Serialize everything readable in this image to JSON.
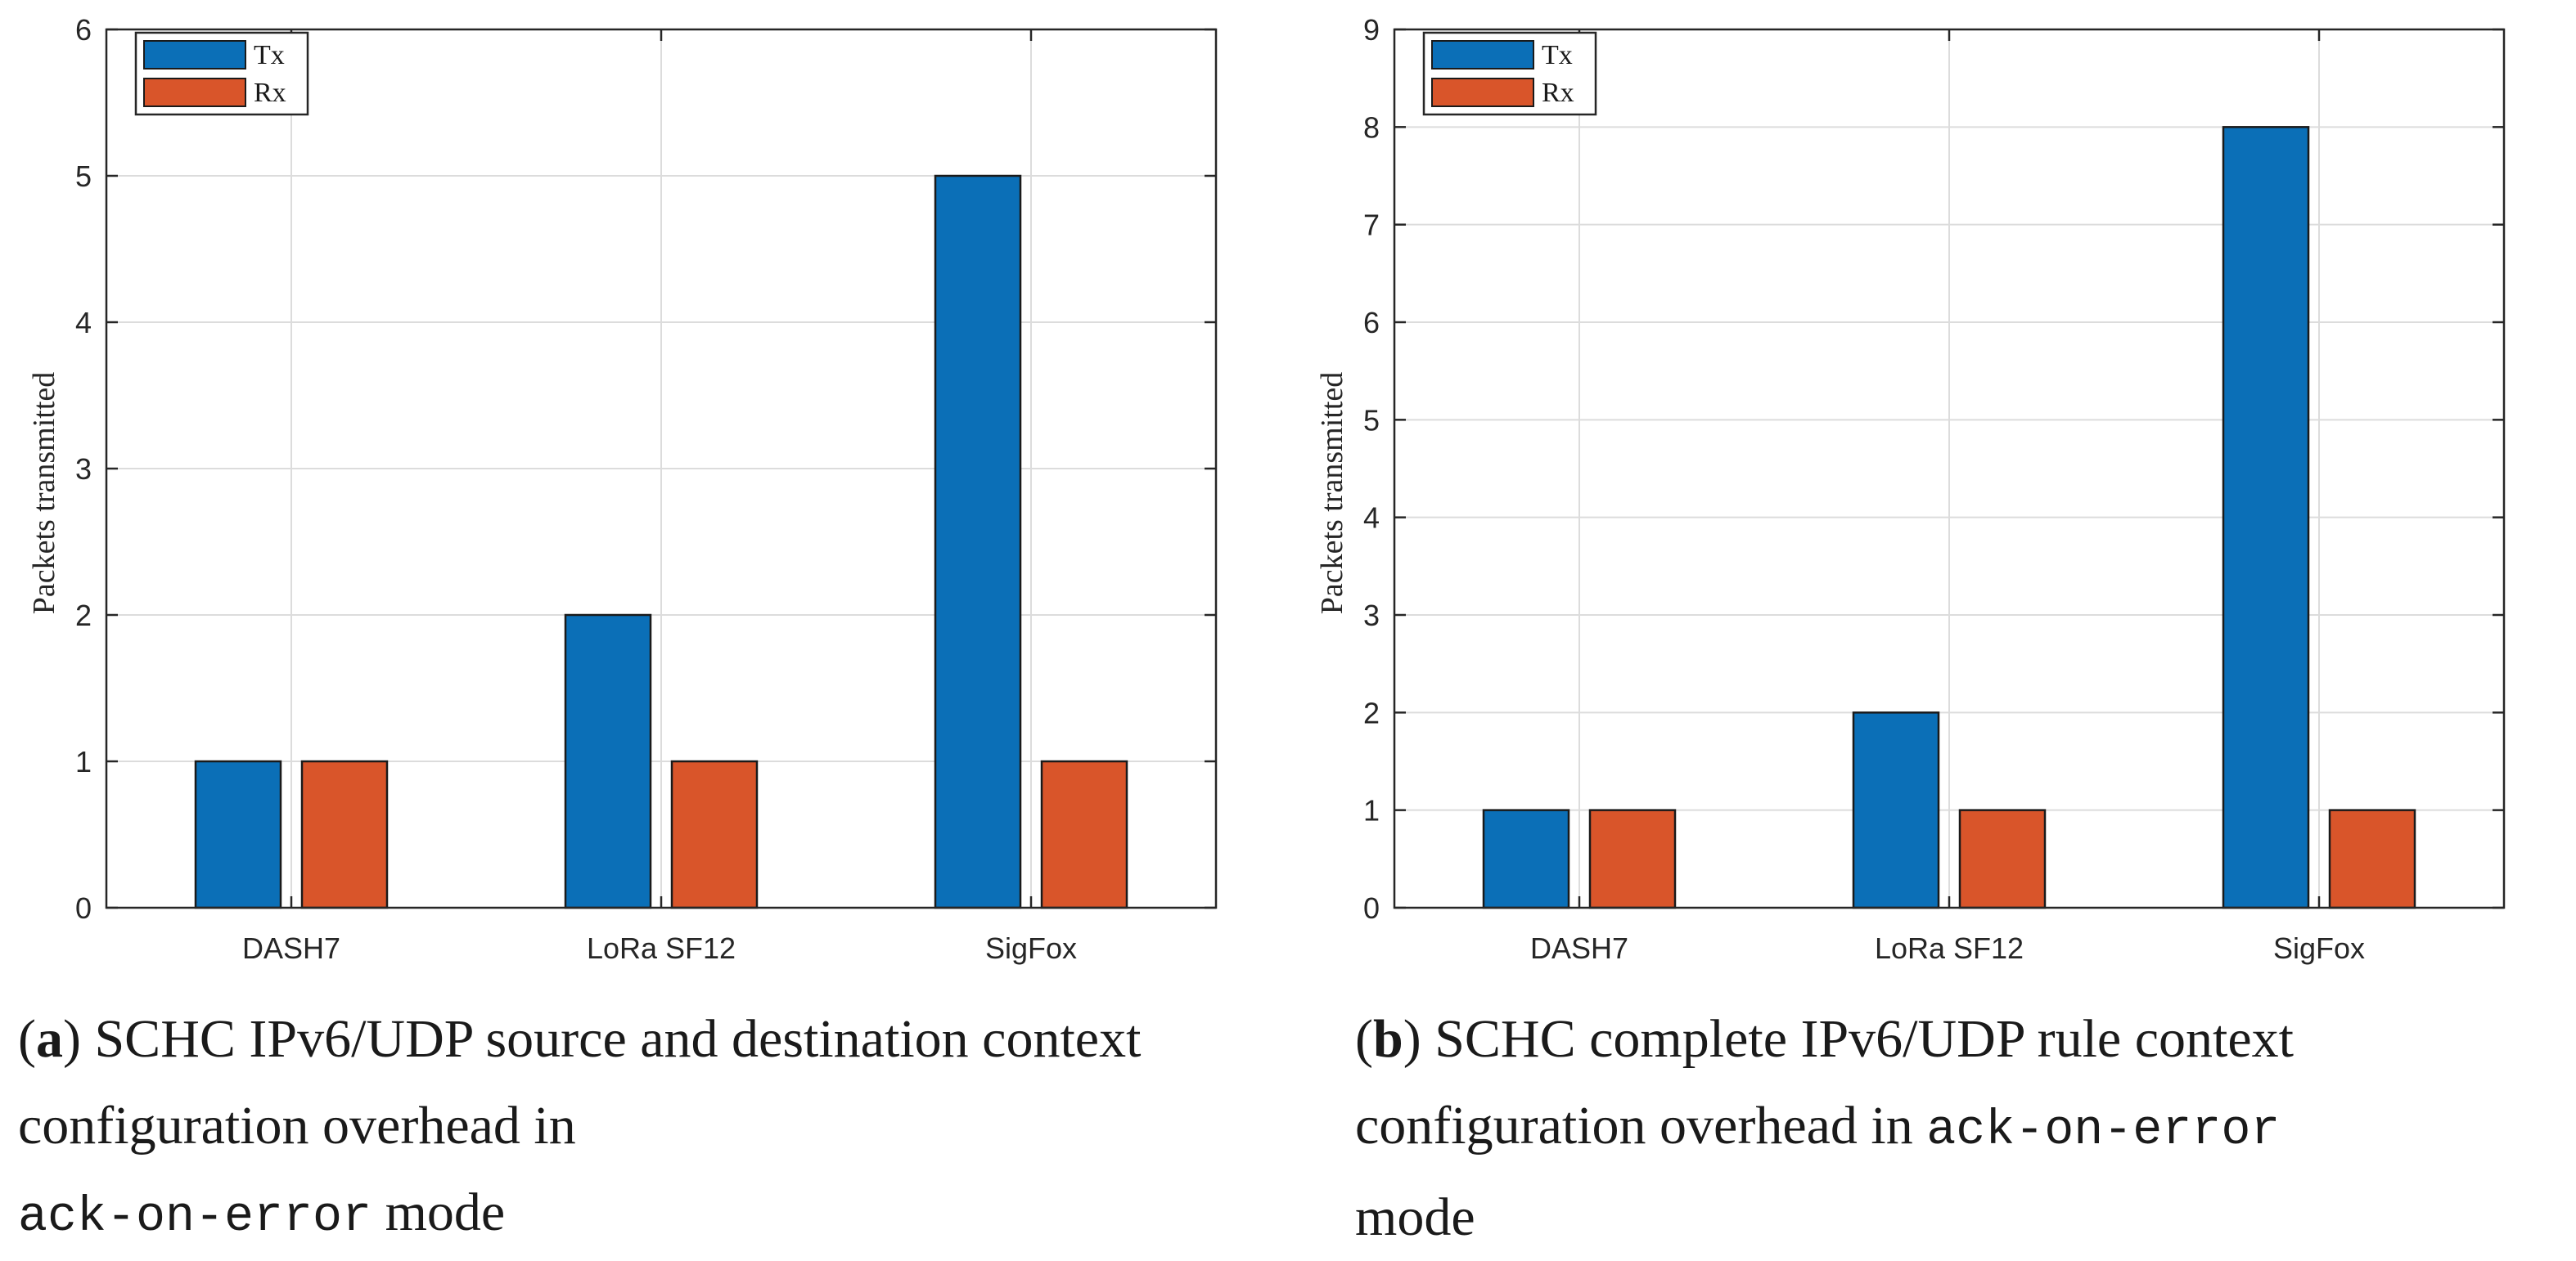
{
  "colors": {
    "tx": "#0b6fb7",
    "rx": "#d9552a",
    "grid": "#dcdcdc",
    "axis": "#262626"
  },
  "chart_data": [
    {
      "type": "bar",
      "panel": "a",
      "categories": [
        "DASH7",
        "LoRa SF12",
        "SigFox"
      ],
      "series": [
        {
          "name": "Tx",
          "values": [
            1,
            2,
            5
          ]
        },
        {
          "name": "Rx",
          "values": [
            1,
            1,
            1
          ]
        }
      ],
      "ylabel": "Packets transmitted",
      "xlabel": "",
      "ylim": [
        0,
        6
      ],
      "yticks": [
        0,
        1,
        2,
        3,
        4,
        5,
        6
      ],
      "grid": true,
      "legend": "top-left",
      "caption": {
        "label": "a",
        "text": "SCHC IPv6/UDP source and destination context configuration overhead in",
        "code": "ack-on-error",
        "tail": "mode"
      }
    },
    {
      "type": "bar",
      "panel": "b",
      "categories": [
        "DASH7",
        "LoRa SF12",
        "SigFox"
      ],
      "series": [
        {
          "name": "Tx",
          "values": [
            1,
            2,
            8
          ]
        },
        {
          "name": "Rx",
          "values": [
            1,
            1,
            1
          ]
        }
      ],
      "ylabel": "Packets transmitted",
      "xlabel": "",
      "ylim": [
        0,
        9
      ],
      "yticks": [
        0,
        1,
        2,
        3,
        4,
        5,
        6,
        7,
        8,
        9
      ],
      "grid": true,
      "legend": "top-left",
      "caption": {
        "label": "b",
        "text": "SCHC complete IPv6/UDP rule context configuration overhead in",
        "code": "ack-on-error",
        "tail": "mode"
      }
    }
  ]
}
